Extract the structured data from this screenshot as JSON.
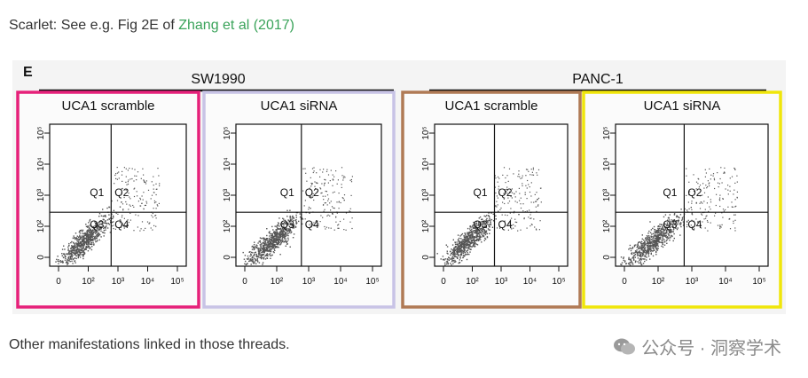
{
  "caption": {
    "prefix": "Scarlet: See e.g. Fig 2E of ",
    "link_text": "Zhang et al (2017)"
  },
  "footer_text": "Other manifestations linked in those threads.",
  "watermark": "公众号 · 洞察学术",
  "figure": {
    "panel_letter": "E",
    "groups": [
      {
        "label": "SW1990"
      },
      {
        "label": "PANC-1"
      }
    ],
    "panels": [
      {
        "title": "UCA1 scramble",
        "border": "#e6217a"
      },
      {
        "title": "UCA1 siRNA",
        "border": "#c8c3e6"
      },
      {
        "title": "UCA1 scramble",
        "border": "#b07a55"
      },
      {
        "title": "UCA1 siRNA",
        "border": "#f0e60a"
      }
    ],
    "quadrants": [
      "Q1",
      "Q2",
      "Q3",
      "Q4"
    ],
    "x_ticks": [
      "0",
      "10²",
      "10³",
      "10⁴",
      "10⁵"
    ],
    "y_ticks": [
      "0",
      "10²",
      "10³",
      "10⁴",
      "10⁵"
    ]
  }
}
